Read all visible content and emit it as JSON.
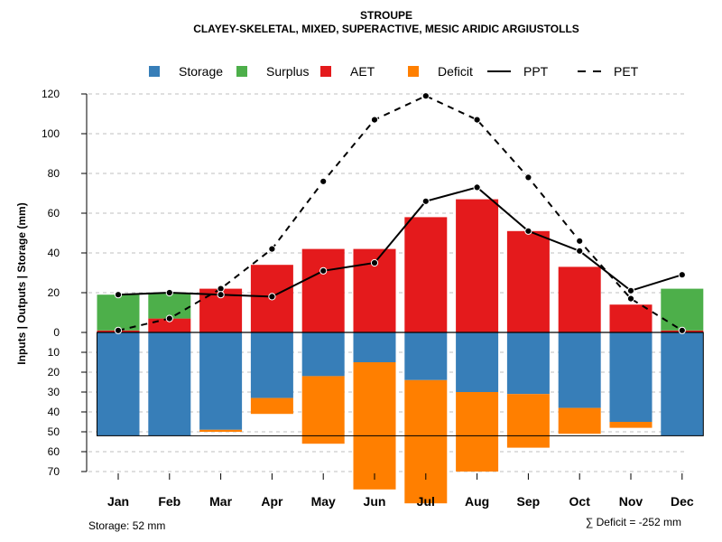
{
  "chart_data": {
    "type": "bar",
    "title": "STROUPE",
    "subtitle": "CLAYEY-SKELETAL, MIXED, SUPERACTIVE, MESIC ARIDIC ARGIUSTOLLS",
    "ylabel": "Inputs | Outputs | Storage    (mm)",
    "categories": [
      "Jan",
      "Feb",
      "Mar",
      "Apr",
      "May",
      "Jun",
      "Jul",
      "Aug",
      "Sep",
      "Oct",
      "Nov",
      "Dec"
    ],
    "upper_ylim": [
      0,
      120
    ],
    "upper_ticks": [
      "0",
      "20",
      "40",
      "60",
      "80",
      "100",
      "120"
    ],
    "lower_ylim": [
      0,
      70
    ],
    "lower_ticks": [
      "10",
      "20",
      "30",
      "40",
      "50",
      "60",
      "70"
    ],
    "legend": [
      {
        "name": "Storage",
        "kind": "box",
        "color": "#377EB8"
      },
      {
        "name": "Surplus",
        "kind": "box",
        "color": "#4DAF4A"
      },
      {
        "name": "AET",
        "kind": "box",
        "color": "#E41A1C"
      },
      {
        "name": "Deficit",
        "kind": "box",
        "color": "#FF7F00"
      },
      {
        "name": "PPT",
        "kind": "solid"
      },
      {
        "name": "PET",
        "kind": "dashed"
      }
    ],
    "series": [
      {
        "name": "AET",
        "color": "#E41A1C",
        "values": [
          1,
          7,
          22,
          34,
          42,
          42,
          58,
          67,
          51,
          33,
          14,
          1
        ]
      },
      {
        "name": "Surplus",
        "color": "#4DAF4A",
        "values": [
          18,
          13,
          0,
          0,
          0,
          0,
          0,
          0,
          0,
          0,
          0,
          21
        ]
      },
      {
        "name": "Storage",
        "color": "#377EB8",
        "values": [
          52,
          52,
          49,
          33,
          22,
          15,
          24,
          30,
          31,
          38,
          45,
          52
        ]
      },
      {
        "name": "Deficit",
        "color": "#FF7F00",
        "values": [
          0,
          0,
          1,
          8,
          34,
          64,
          62,
          40,
          27,
          13,
          3,
          0
        ]
      },
      {
        "name": "PPT",
        "color": "#000000",
        "values": [
          19,
          20,
          19,
          18,
          31,
          35,
          66,
          73,
          51,
          41,
          21,
          29
        ]
      },
      {
        "name": "PET",
        "color": "#000000",
        "values": [
          1,
          7,
          22,
          42,
          76,
          107,
          119,
          107,
          78,
          46,
          17,
          1
        ]
      }
    ],
    "storage_capacity": 52,
    "storage_note": "Storage: 52 mm",
    "deficit_note": "∑ Deficit = -252 mm"
  }
}
